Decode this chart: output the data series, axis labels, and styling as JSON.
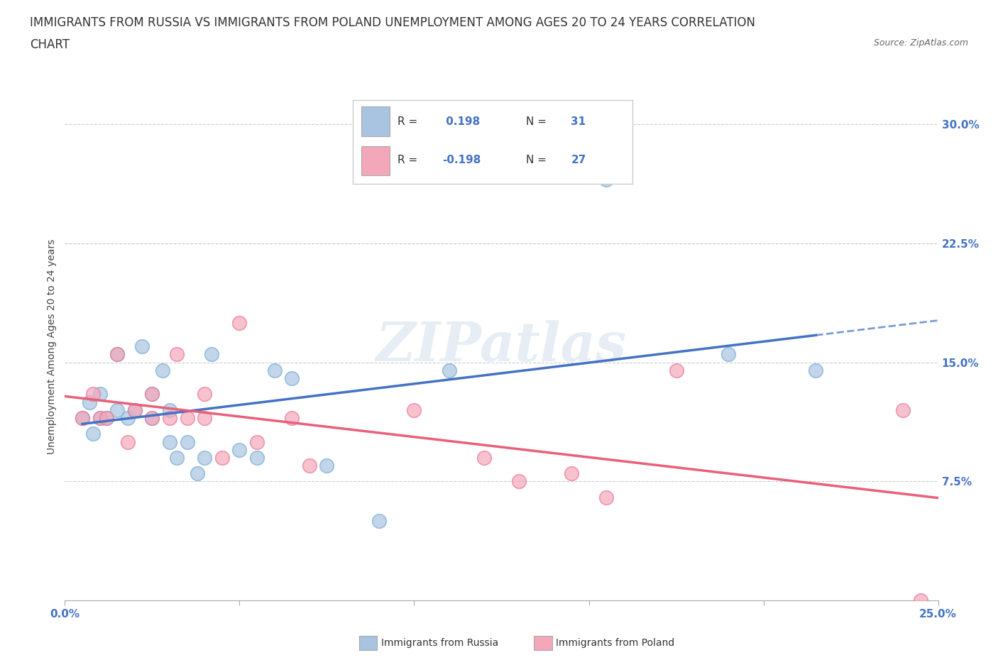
{
  "title_line1": "IMMIGRANTS FROM RUSSIA VS IMMIGRANTS FROM POLAND UNEMPLOYMENT AMONG AGES 20 TO 24 YEARS CORRELATION",
  "title_line2": "CHART",
  "source": "Source: ZipAtlas.com",
  "ylabel": "Unemployment Among Ages 20 to 24 years",
  "xlim": [
    0.0,
    0.25
  ],
  "ylim": [
    0.0,
    0.32
  ],
  "xticks": [
    0.0,
    0.05,
    0.1,
    0.15,
    0.2,
    0.25
  ],
  "ytick_labels": [
    "7.5%",
    "15.0%",
    "22.5%",
    "30.0%"
  ],
  "yticks": [
    0.075,
    0.15,
    0.225,
    0.3
  ],
  "russia_color": "#a8c4e0",
  "russia_edge_color": "#7aadd4",
  "poland_color": "#f4a7b9",
  "poland_edge_color": "#e87a9a",
  "russia_line_color": "#4472c4",
  "poland_line_color": "#e8607a",
  "russia_R": "0.198",
  "russia_N": "31",
  "poland_R": "-0.198",
  "poland_N": "27",
  "r_value_color": "#4472c4",
  "n_value_color": "#333355",
  "russia_scatter_x": [
    0.005,
    0.007,
    0.008,
    0.01,
    0.01,
    0.012,
    0.015,
    0.015,
    0.018,
    0.02,
    0.022,
    0.025,
    0.025,
    0.028,
    0.03,
    0.03,
    0.032,
    0.035,
    0.038,
    0.04,
    0.042,
    0.05,
    0.055,
    0.06,
    0.065,
    0.075,
    0.09,
    0.11,
    0.155,
    0.19,
    0.215
  ],
  "russia_scatter_y": [
    0.115,
    0.125,
    0.105,
    0.115,
    0.13,
    0.115,
    0.12,
    0.155,
    0.115,
    0.12,
    0.16,
    0.115,
    0.13,
    0.145,
    0.1,
    0.12,
    0.09,
    0.1,
    0.08,
    0.09,
    0.155,
    0.095,
    0.09,
    0.145,
    0.14,
    0.085,
    0.05,
    0.145,
    0.265,
    0.155,
    0.145
  ],
  "poland_scatter_x": [
    0.005,
    0.008,
    0.01,
    0.012,
    0.015,
    0.018,
    0.02,
    0.025,
    0.025,
    0.03,
    0.032,
    0.035,
    0.04,
    0.04,
    0.045,
    0.05,
    0.055,
    0.065,
    0.07,
    0.1,
    0.12,
    0.13,
    0.145,
    0.155,
    0.175,
    0.24,
    0.245
  ],
  "poland_scatter_y": [
    0.115,
    0.13,
    0.115,
    0.115,
    0.155,
    0.1,
    0.12,
    0.115,
    0.13,
    0.115,
    0.155,
    0.115,
    0.13,
    0.115,
    0.09,
    0.175,
    0.1,
    0.115,
    0.085,
    0.12,
    0.09,
    0.075,
    0.08,
    0.065,
    0.145,
    0.12,
    0.0
  ],
  "background_color": "#ffffff",
  "watermark": "ZIPatlas",
  "title_fontsize": 12,
  "axis_label_fontsize": 10,
  "tick_fontsize": 11,
  "legend_fontsize": 12
}
